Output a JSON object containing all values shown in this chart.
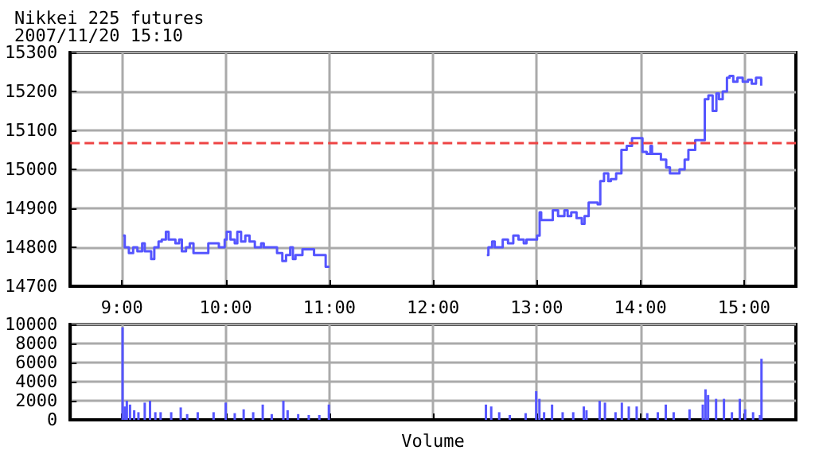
{
  "chart_data": [
    {
      "type": "step",
      "title": "Nikkei 225 futures",
      "subtitle": "2007/11/20 15:10",
      "color": "#5555ff",
      "x": [
        9.01,
        9.026,
        9.066,
        9.107,
        9.148,
        9.194,
        9.219,
        9.281,
        9.311,
        9.352,
        9.383,
        9.423,
        9.449,
        9.515,
        9.551,
        9.577,
        9.617,
        9.653,
        9.689,
        9.755,
        9.832,
        9.934,
        9.99,
        10.01,
        10.046,
        10.087,
        10.112,
        10.148,
        10.189,
        10.23,
        10.281,
        10.342,
        10.367,
        10.495,
        10.546,
        10.582,
        10.622,
        10.648,
        10.673,
        10.74,
        10.852,
        10.964,
        11.0,
        12.519,
        12.534,
        12.57,
        12.595,
        12.672,
        12.723,
        12.774,
        12.824,
        12.875,
        12.901,
        13.003,
        13.028,
        13.043,
        13.155,
        13.206,
        13.267,
        13.298,
        13.333,
        13.384,
        13.435,
        13.461,
        13.501,
        13.588,
        13.613,
        13.649,
        13.69,
        13.715,
        13.766,
        13.817,
        13.868,
        13.919,
        13.969,
        14.02,
        14.061,
        14.097,
        14.112,
        14.198,
        14.249,
        14.285,
        14.377,
        14.427,
        14.463,
        14.529,
        14.621,
        14.656,
        14.697,
        14.733,
        14.758,
        14.794,
        14.835,
        14.86,
        14.896,
        14.936,
        14.987,
        15.038,
        15.074,
        15.115,
        15.165
      ],
      "values": [
        14830,
        14800,
        14785,
        14800,
        14790,
        14810,
        14790,
        14770,
        14800,
        14815,
        14820,
        14840,
        14820,
        14810,
        14820,
        14790,
        14800,
        14810,
        14785,
        14785,
        14810,
        14800,
        14820,
        14840,
        14820,
        14810,
        14840,
        14815,
        14830,
        14815,
        14800,
        14810,
        14800,
        14785,
        14765,
        14780,
        14800,
        14770,
        14780,
        14795,
        14780,
        14750,
        null,
        14780,
        14800,
        14815,
        14800,
        14820,
        14810,
        14830,
        14820,
        14810,
        14820,
        14830,
        14890,
        14870,
        14895,
        14880,
        14895,
        14880,
        14890,
        14875,
        14860,
        14880,
        14915,
        14910,
        14970,
        14990,
        14970,
        14975,
        14990,
        15050,
        15060,
        15080,
        15080,
        15045,
        15040,
        15060,
        15040,
        15025,
        15005,
        14990,
        15000,
        15025,
        15050,
        15075,
        15180,
        15190,
        15150,
        15195,
        15180,
        15200,
        15235,
        15240,
        15225,
        15235,
        15225,
        15230,
        15220,
        15235,
        15215
      ],
      "xlim": [
        8.5,
        15.5
      ],
      "xticks": [
        {
          "value": 9,
          "label": "9:00"
        },
        {
          "value": 10,
          "label": "10:00"
        },
        {
          "value": 11,
          "label": "11:00"
        },
        {
          "value": 12,
          "label": "12:00"
        },
        {
          "value": 13,
          "label": "13:00"
        },
        {
          "value": 14,
          "label": "14:00"
        },
        {
          "value": 15,
          "label": "15:00"
        }
      ],
      "ylim": [
        14700,
        15300
      ],
      "yticks": [
        14700,
        14800,
        14900,
        15000,
        15100,
        15200,
        15300
      ],
      "grid": true,
      "ref_lines": [
        {
          "axis": "y",
          "value": 15070,
          "color": "#ee4444",
          "line_style": "dashed"
        }
      ]
    },
    {
      "type": "bar",
      "xlabel": "Volume",
      "color": "#5555ff",
      "tick_labels": "y",
      "grid": true,
      "x": [
        9.005,
        9.026,
        9.046,
        9.077,
        9.117,
        9.158,
        9.219,
        9.27,
        9.321,
        9.372,
        9.474,
        9.566,
        9.628,
        9.73,
        9.883,
        10.0,
        10.087,
        10.173,
        10.265,
        10.357,
        10.444,
        10.556,
        10.597,
        10.699,
        10.801,
        10.903,
        10.995,
        12.51,
        12.561,
        12.638,
        12.74,
        12.893,
        12.995,
        13.026,
        13.071,
        13.148,
        13.25,
        13.352,
        13.454,
        13.48,
        13.607,
        13.658,
        13.76,
        13.821,
        13.888,
        13.964,
        14.066,
        14.168,
        14.245,
        14.321,
        14.474,
        14.602,
        14.628,
        14.653,
        14.73,
        14.806,
        14.883,
        14.959,
        15.01,
        15.087,
        15.153,
        15.168
      ],
      "values": [
        9700,
        1400,
        2000,
        1600,
        1000,
        800,
        1800,
        2000,
        800,
        800,
        800,
        1300,
        600,
        800,
        800,
        1800,
        700,
        1100,
        800,
        1600,
        600,
        2000,
        1000,
        600,
        500,
        500,
        1600,
        1600,
        1400,
        800,
        500,
        700,
        3000,
        2200,
        800,
        1600,
        800,
        800,
        1400,
        1000,
        2000,
        1800,
        800,
        1800,
        1400,
        1400,
        700,
        800,
        1600,
        800,
        1100,
        1600,
        3200,
        2600,
        2200,
        2200,
        800,
        2200,
        1100,
        800,
        500,
        6400
      ],
      "xlim": [
        8.5,
        15.5
      ],
      "xticks": [
        9,
        10,
        11,
        12,
        13,
        14,
        15
      ],
      "ylim": [
        0,
        10000
      ],
      "yticks": [
        0,
        2000,
        4000,
        6000,
        8000,
        10000
      ]
    }
  ]
}
